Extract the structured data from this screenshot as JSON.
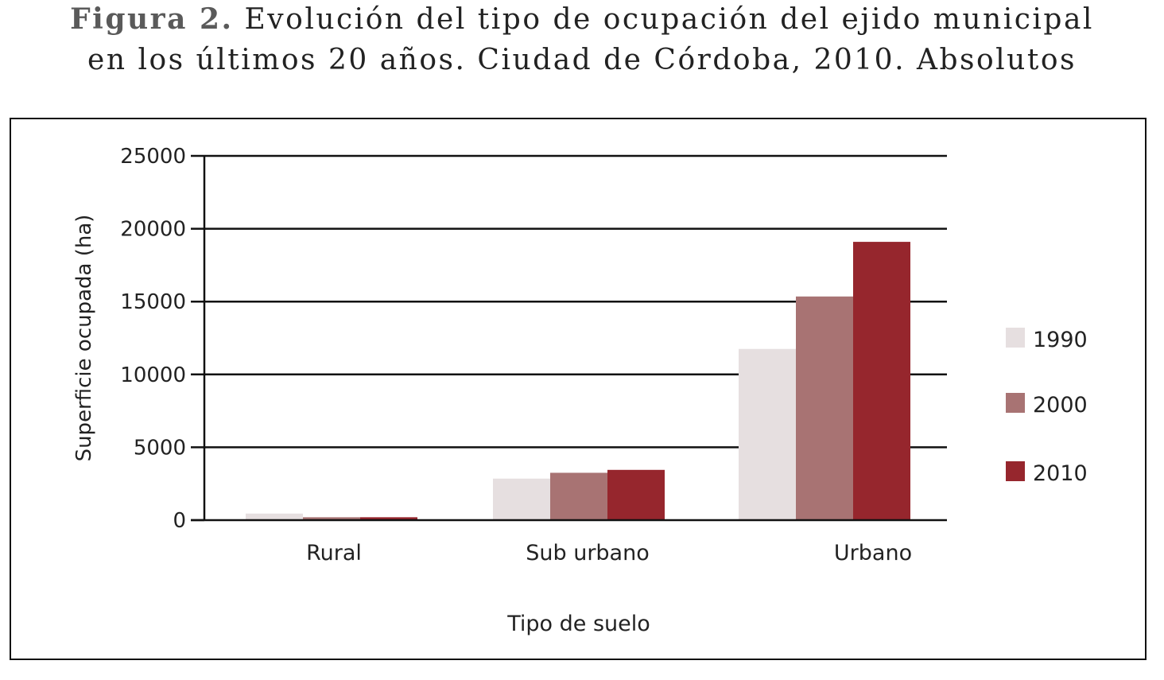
{
  "figure": {
    "label": "Figura 2.",
    "title_line1": "Evolución del tipo de ocupación del ejido municipal",
    "title_line2": "en los últimos 20 años. Ciudad de Córdoba, 2010. Absolutos"
  },
  "chart_data": {
    "type": "bar",
    "xlabel": "Tipo de suelo",
    "ylabel": "Superficie ocupada (ha)",
    "categories": [
      "Rural",
      "Sub urbano",
      "Urbano"
    ],
    "ylim": [
      0,
      25000
    ],
    "yticks": [
      0,
      5000,
      10000,
      15000,
      20000,
      25000
    ],
    "grid": true,
    "legend": "right",
    "series": [
      {
        "name": "1990",
        "color": "#e6dfe0",
        "values": [
          450,
          2850,
          11750
        ]
      },
      {
        "name": "2000",
        "color": "#a87373",
        "values": [
          200,
          3250,
          15350
        ]
      },
      {
        "name": "2010",
        "color": "#96262d",
        "values": [
          200,
          3450,
          19100
        ]
      }
    ]
  }
}
